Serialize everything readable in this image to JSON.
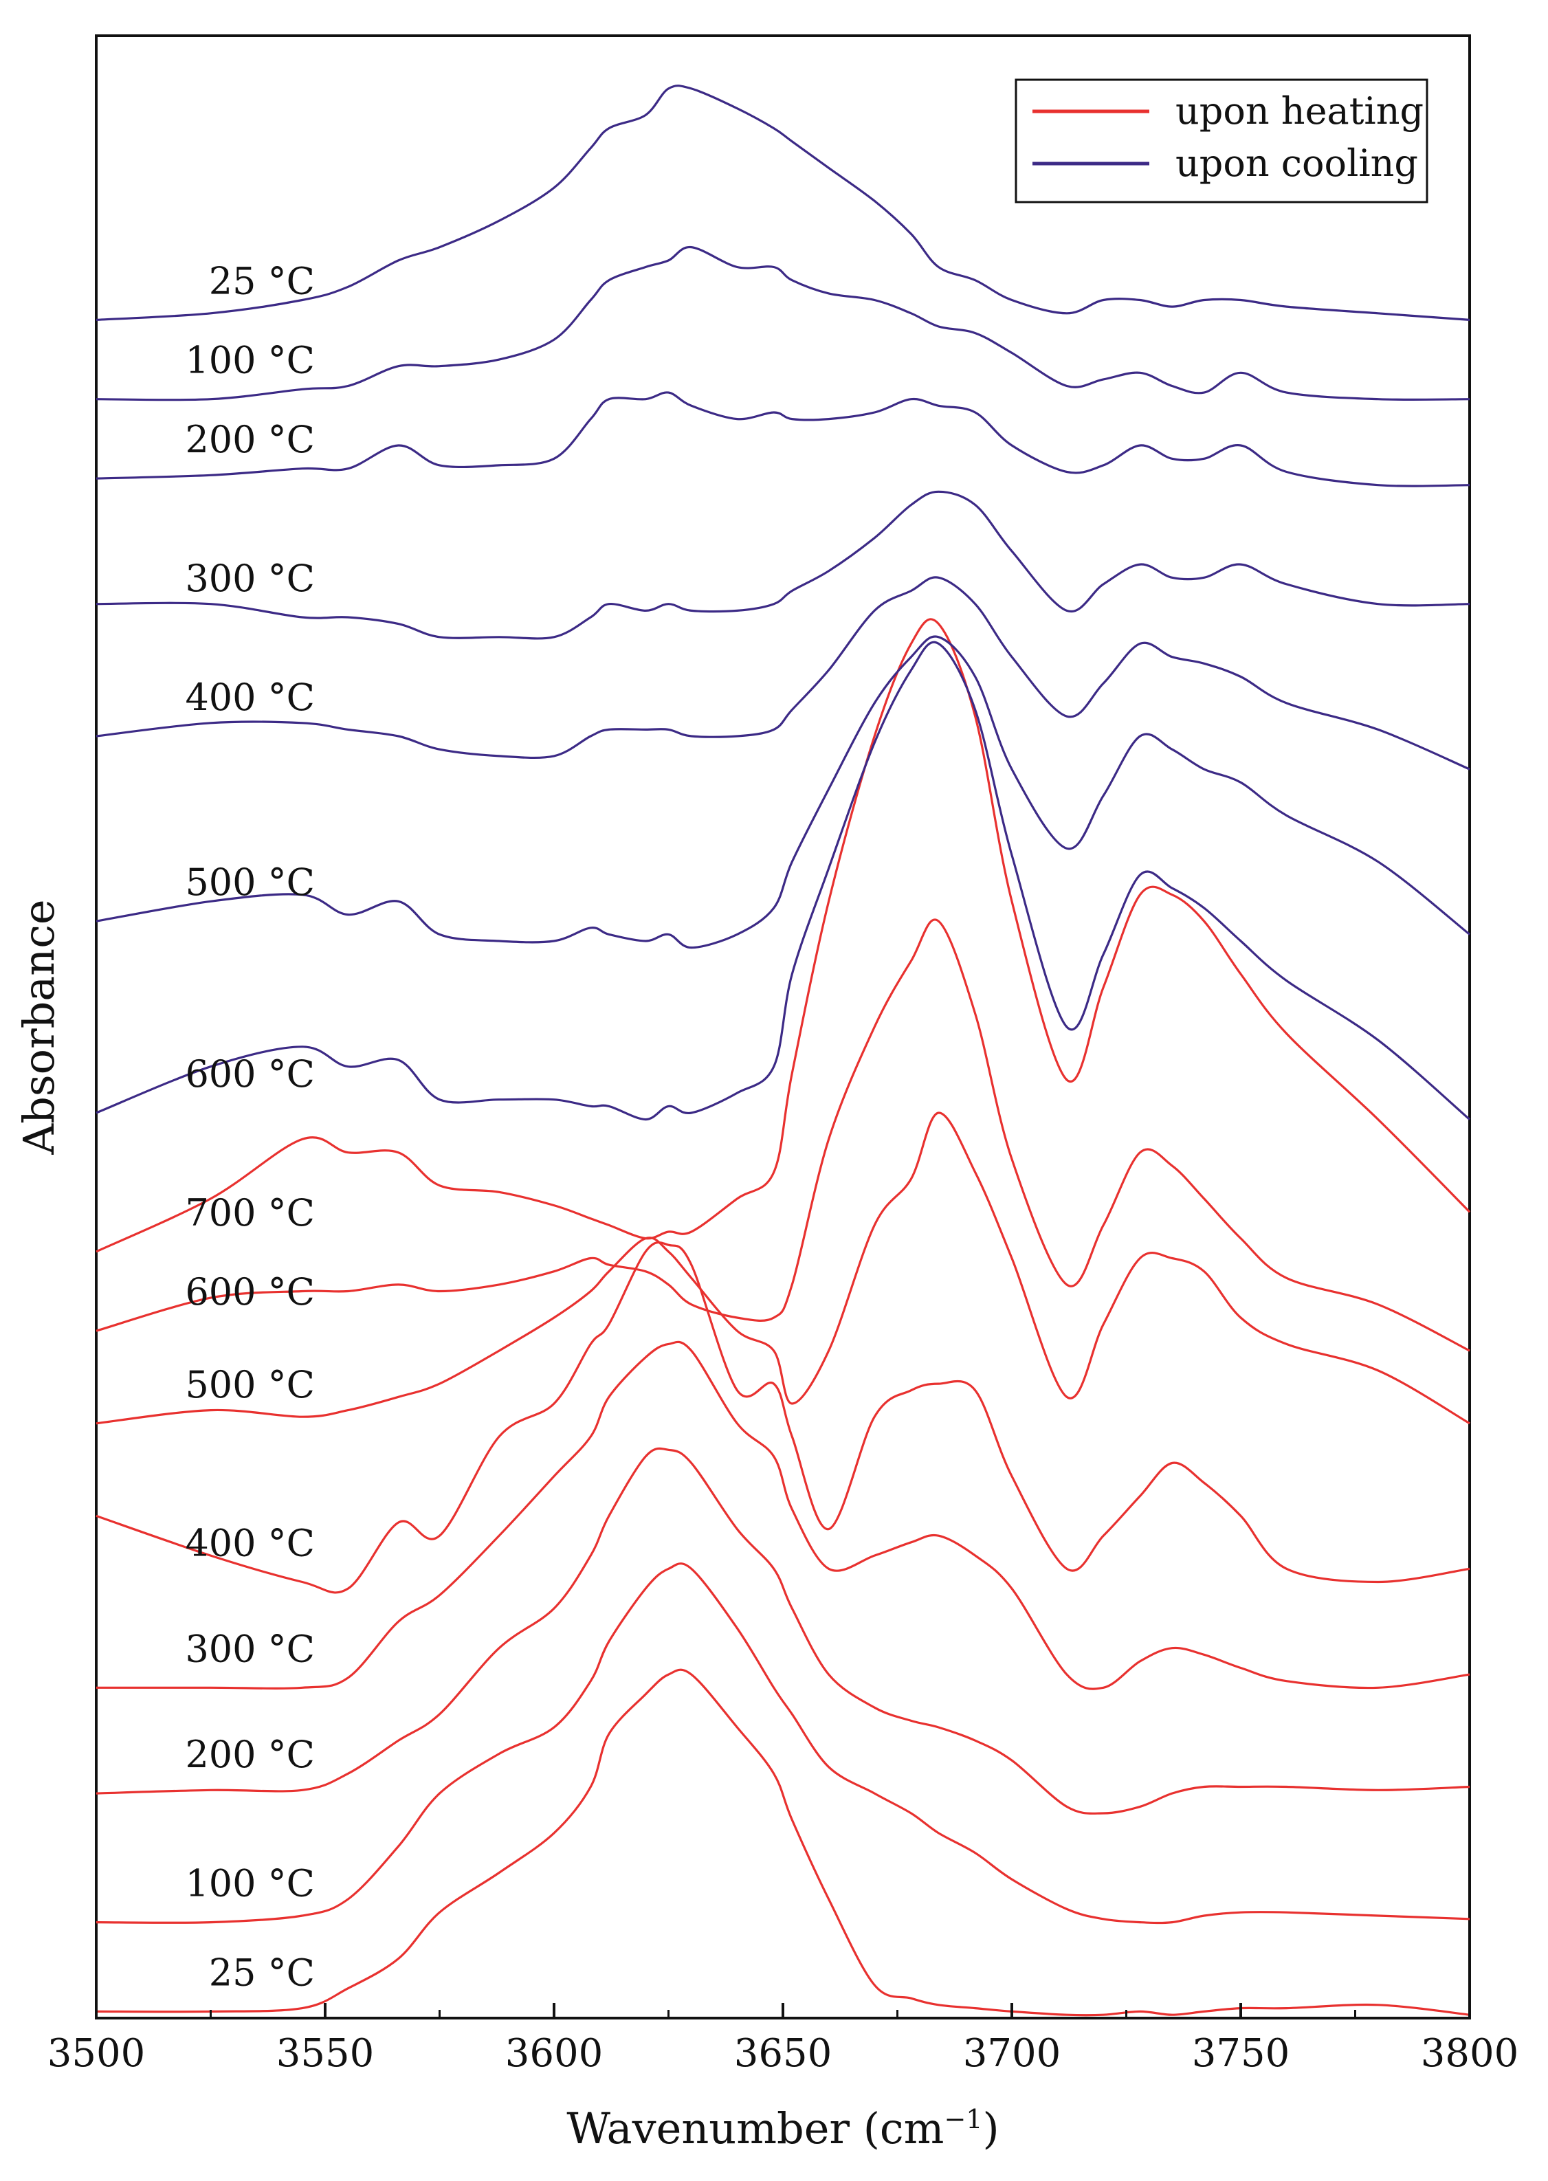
{
  "chart_data": {
    "type": "line",
    "title": "",
    "xlabel": "Wavenumber (cm",
    "xlabel_superscript": "−1",
    "xlabel_suffix": ")",
    "ylabel": "Absorbance",
    "xlim": [
      3500,
      3800
    ],
    "ylim": [
      0,
      30
    ],
    "x_ticks": [
      3500,
      3550,
      3600,
      3650,
      3700,
      3750,
      3800
    ],
    "x_tick_labels": [
      "3500",
      "3550",
      "3600",
      "3650",
      "3700",
      "3750",
      "3800"
    ],
    "y_ticks_shown": false,
    "legend": {
      "position": "top-right",
      "entries": [
        {
          "label": "upon heating",
          "color": "#e8312f"
        },
        {
          "label": "upon cooling",
          "color": "#3c2a86"
        }
      ]
    },
    "colors": {
      "heating": "#e8312f",
      "cooling": "#3c2a86",
      "axis": "#111111"
    },
    "x": [
      3500,
      3525,
      3545,
      3555,
      3566,
      3575,
      3588,
      3600,
      3608,
      3612,
      3620,
      3625,
      3630,
      3640,
      3648,
      3652,
      3660,
      3670,
      3678,
      3684,
      3692,
      3700,
      3712,
      3720,
      3728,
      3735,
      3742,
      3750,
      3760,
      3780,
      3800
    ],
    "series": [
      {
        "name": "25 °C",
        "group": "heating",
        "label": "25 °C",
        "values": [
          0.1,
          0.1,
          0.15,
          0.45,
          0.9,
          1.6,
          2.2,
          2.8,
          3.5,
          4.3,
          4.9,
          5.2,
          5.2,
          4.4,
          3.7,
          3.0,
          1.8,
          0.5,
          0.3,
          0.2,
          0.15,
          0.1,
          0.05,
          0.05,
          0.1,
          0.05,
          0.1,
          0.15,
          0.15,
          0.2,
          0.05
        ]
      },
      {
        "name": "100 °C",
        "group": "heating",
        "label": "100 °C",
        "values": [
          1.45,
          1.45,
          1.55,
          1.8,
          2.6,
          3.4,
          4.0,
          4.4,
          5.1,
          5.7,
          6.5,
          6.8,
          6.8,
          5.9,
          5.0,
          4.6,
          3.8,
          3.4,
          3.1,
          2.8,
          2.5,
          2.1,
          1.65,
          1.5,
          1.45,
          1.45,
          1.55,
          1.6,
          1.6,
          1.55,
          1.5
        ]
      },
      {
        "name": "200 °C",
        "group": "heating",
        "label": "200 °C",
        "values": [
          3.4,
          3.45,
          3.45,
          3.7,
          4.2,
          4.6,
          5.6,
          6.2,
          7.0,
          7.6,
          8.5,
          8.6,
          8.4,
          7.4,
          6.8,
          6.2,
          5.2,
          4.7,
          4.5,
          4.4,
          4.2,
          3.9,
          3.2,
          3.1,
          3.2,
          3.4,
          3.5,
          3.5,
          3.5,
          3.45,
          3.5
        ]
      },
      {
        "name": "300 °C",
        "group": "heating",
        "label": "300 °C",
        "values": [
          5.0,
          5.0,
          5.0,
          5.15,
          6.0,
          6.4,
          7.3,
          8.2,
          8.8,
          9.4,
          10.0,
          10.2,
          10.1,
          9.0,
          8.5,
          7.7,
          6.8,
          7.0,
          7.2,
          7.3,
          7.0,
          6.5,
          5.2,
          5.0,
          5.4,
          5.6,
          5.5,
          5.3,
          5.1,
          5.0,
          5.2
        ]
      },
      {
        "name": "400 °C",
        "group": "heating",
        "label": "400 °C",
        "values": [
          7.6,
          7.0,
          6.6,
          6.5,
          7.5,
          7.3,
          8.8,
          9.3,
          10.2,
          10.5,
          11.6,
          11.7,
          11.4,
          9.5,
          9.6,
          8.8,
          7.4,
          9.1,
          9.5,
          9.6,
          9.5,
          8.2,
          6.8,
          7.3,
          7.9,
          8.4,
          8.1,
          7.6,
          6.8,
          6.6,
          6.8
        ]
      },
      {
        "name": "500 °C",
        "group": "heating",
        "label": "500 °C",
        "values": [
          9.0,
          9.2,
          9.1,
          9.2,
          9.4,
          9.6,
          10.1,
          10.6,
          11.0,
          11.3,
          11.8,
          11.6,
          11.2,
          10.4,
          10.1,
          9.3,
          10.1,
          12.0,
          12.7,
          13.7,
          12.8,
          11.5,
          9.4,
          10.5,
          11.5,
          11.5,
          11.3,
          10.6,
          10.2,
          9.8,
          9.0
        ]
      },
      {
        "name": "600 °C",
        "group": "heating",
        "label": "600 °C",
        "values": [
          10.4,
          10.9,
          11.0,
          11.0,
          11.1,
          11.0,
          11.1,
          11.3,
          11.5,
          11.4,
          11.3,
          11.1,
          10.8,
          10.6,
          10.6,
          11.1,
          13.3,
          15.0,
          16.0,
          16.6,
          15.2,
          13.0,
          11.1,
          12.0,
          13.1,
          12.9,
          12.4,
          11.8,
          11.2,
          10.8,
          10.1
        ]
      },
      {
        "name": "700 °C",
        "group": "heating",
        "label": "700 °C",
        "values": [
          11.6,
          12.4,
          13.3,
          13.1,
          13.1,
          12.6,
          12.5,
          12.3,
          12.1,
          12.0,
          11.8,
          11.9,
          11.9,
          12.4,
          12.8,
          14.3,
          16.9,
          19.4,
          20.8,
          21.1,
          19.7,
          16.9,
          14.2,
          15.6,
          17.0,
          17.0,
          16.6,
          15.8,
          14.9,
          13.6,
          12.2
        ]
      },
      {
        "name": "600 °C",
        "group": "cooling",
        "label": "600 °C",
        "values": [
          13.7,
          14.4,
          14.7,
          14.4,
          14.5,
          13.9,
          13.9,
          13.9,
          13.8,
          13.8,
          13.6,
          13.8,
          13.7,
          14.0,
          14.4,
          15.8,
          17.4,
          19.3,
          20.4,
          20.8,
          19.8,
          17.6,
          15.0,
          16.1,
          17.3,
          17.1,
          16.8,
          16.3,
          15.7,
          14.8,
          13.6
        ]
      },
      {
        "name": "500 °C",
        "group": "cooling",
        "label": "500 °C",
        "values": [
          16.6,
          16.9,
          17.0,
          16.7,
          16.9,
          16.4,
          16.3,
          16.3,
          16.5,
          16.4,
          16.3,
          16.4,
          16.2,
          16.4,
          16.8,
          17.5,
          18.6,
          19.9,
          20.6,
          20.9,
          20.3,
          18.9,
          17.7,
          18.5,
          19.4,
          19.2,
          18.9,
          18.7,
          18.2,
          17.5,
          16.4
        ]
      },
      {
        "name": "400 °C",
        "group": "cooling",
        "label": "400 °C",
        "values": [
          19.4,
          19.6,
          19.6,
          19.5,
          19.4,
          19.2,
          19.1,
          19.1,
          19.4,
          19.5,
          19.5,
          19.5,
          19.4,
          19.4,
          19.5,
          19.8,
          20.4,
          21.3,
          21.6,
          21.8,
          21.4,
          20.6,
          19.7,
          20.2,
          20.8,
          20.6,
          20.5,
          20.3,
          19.9,
          19.5,
          18.9
        ]
      },
      {
        "name": "300 °C",
        "group": "cooling",
        "label": "300 °C",
        "values": [
          21.4,
          21.4,
          21.2,
          21.2,
          21.1,
          20.9,
          20.9,
          20.9,
          21.2,
          21.4,
          21.3,
          21.4,
          21.3,
          21.3,
          21.4,
          21.6,
          21.9,
          22.4,
          22.9,
          23.1,
          22.9,
          22.2,
          21.3,
          21.7,
          22.0,
          21.8,
          21.8,
          22.0,
          21.7,
          21.4,
          21.4
        ]
      },
      {
        "name": "200 °C",
        "group": "cooling",
        "label": "200 °C",
        "values": [
          23.3,
          23.35,
          23.45,
          23.45,
          23.8,
          23.5,
          23.5,
          23.6,
          24.2,
          24.5,
          24.5,
          24.6,
          24.4,
          24.2,
          24.3,
          24.2,
          24.2,
          24.3,
          24.5,
          24.4,
          24.3,
          23.8,
          23.4,
          23.5,
          23.8,
          23.6,
          23.6,
          23.8,
          23.4,
          23.2,
          23.2
        ]
      },
      {
        "name": "100 °C",
        "group": "cooling",
        "label": "100 °C",
        "values": [
          24.5,
          24.5,
          24.65,
          24.7,
          25.0,
          25.0,
          25.1,
          25.4,
          26.0,
          26.3,
          26.5,
          26.6,
          26.8,
          26.5,
          26.5,
          26.3,
          26.1,
          26.0,
          25.8,
          25.6,
          25.5,
          25.2,
          24.7,
          24.8,
          24.9,
          24.7,
          24.6,
          24.9,
          24.6,
          24.5,
          24.5
        ]
      },
      {
        "name": "25 °C",
        "group": "cooling",
        "label": "25 °C",
        "values": [
          25.7,
          25.8,
          26.0,
          26.2,
          26.6,
          26.8,
          27.2,
          27.7,
          28.3,
          28.6,
          28.8,
          29.2,
          29.2,
          28.9,
          28.6,
          28.4,
          28.0,
          27.5,
          27.0,
          26.5,
          26.3,
          26.0,
          25.8,
          26.0,
          26.0,
          25.9,
          26.0,
          26.0,
          25.9,
          25.8,
          25.7
        ]
      }
    ]
  }
}
